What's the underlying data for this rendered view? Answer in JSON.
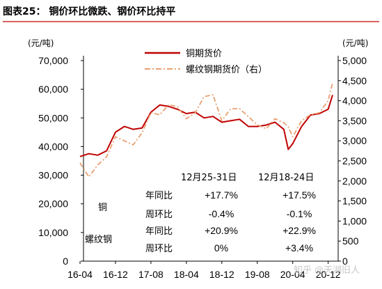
{
  "header": {
    "title": "图表25： 铜价环比微跌、钢价环比持平"
  },
  "watermark": "知乎 @天湖旧人",
  "chart_data": {
    "type": "line",
    "title": "铜价环比微跌、钢价环比持平",
    "x_ticks": [
      "16-04",
      "16-12",
      "17-08",
      "18-04",
      "18-12",
      "19-08",
      "20-04",
      "20-12"
    ],
    "y_left": {
      "unit": "(元/吨)",
      "ylim": [
        0,
        70000
      ],
      "ticks": [
        "0",
        "10,000",
        "20,000",
        "30,000",
        "40,000",
        "50,000",
        "60,000",
        "70,000"
      ]
    },
    "y_right": {
      "unit": "(元/吨)",
      "ylim": [
        0,
        5000
      ],
      "ticks": [
        "0",
        "500",
        "1,000",
        "1,500",
        "2,000",
        "2,500",
        "3,000",
        "3,500",
        "4,000",
        "4,500",
        "5,000"
      ]
    },
    "legend_position": "top-center",
    "series": [
      {
        "name": "铜期货价",
        "axis": "left",
        "color": "#c00000",
        "style": "solid",
        "x": [
          "16-04",
          "16-06",
          "16-08",
          "16-10",
          "16-12",
          "17-02",
          "17-04",
          "17-06",
          "17-08",
          "17-10",
          "17-12",
          "18-02",
          "18-04",
          "18-06",
          "18-08",
          "18-10",
          "18-12",
          "19-02",
          "19-04",
          "19-06",
          "19-08",
          "19-10",
          "19-12",
          "20-02",
          "20-03",
          "20-04",
          "20-06",
          "20-08",
          "20-10",
          "20-12",
          "21-01"
        ],
        "values": [
          36500,
          37500,
          37000,
          38500,
          45000,
          47000,
          46000,
          46500,
          52000,
          54500,
          54000,
          53000,
          51500,
          52000,
          50000,
          50500,
          48500,
          49000,
          49500,
          47000,
          47000,
          47500,
          48500,
          46000,
          39000,
          41000,
          47000,
          51000,
          51500,
          53000,
          58000
        ]
      },
      {
        "name": "螺纹钢期货价（右）",
        "axis": "right",
        "color": "#e8a070",
        "style": "dash-dot",
        "x": [
          "16-04",
          "16-06",
          "16-08",
          "16-10",
          "16-12",
          "17-02",
          "17-04",
          "17-06",
          "17-08",
          "17-10",
          "17-12",
          "18-02",
          "18-04",
          "18-06",
          "18-08",
          "18-10",
          "18-12",
          "19-02",
          "19-04",
          "19-06",
          "19-08",
          "19-10",
          "19-12",
          "20-02",
          "20-03",
          "20-04",
          "20-06",
          "20-08",
          "20-10",
          "20-12",
          "21-01"
        ],
        "values": [
          2450,
          2100,
          2400,
          2600,
          3100,
          3000,
          2900,
          3200,
          3700,
          3650,
          3900,
          3850,
          3550,
          3700,
          4100,
          4150,
          3500,
          3800,
          3800,
          3600,
          3400,
          3300,
          3550,
          3450,
          3350,
          3100,
          3500,
          3650,
          3700,
          4000,
          4450
        ]
      }
    ],
    "table": {
      "col_headers": [
        "12月25-31日",
        "12月18-24日"
      ],
      "groups": [
        {
          "label": "铜",
          "rows": [
            {
              "label": "年同比",
              "values": [
                "+17.7%",
                "+17.5%"
              ]
            },
            {
              "label": "周环比",
              "values": [
                "-0.4%",
                "-0.1%"
              ]
            }
          ]
        },
        {
          "label": "螺纹钢",
          "rows": [
            {
              "label": "年同比",
              "values": [
                "+20.9%",
                "+22.9%"
              ]
            },
            {
              "label": "周环比",
              "values": [
                "0%",
                "+3.4%"
              ]
            }
          ]
        }
      ]
    }
  }
}
